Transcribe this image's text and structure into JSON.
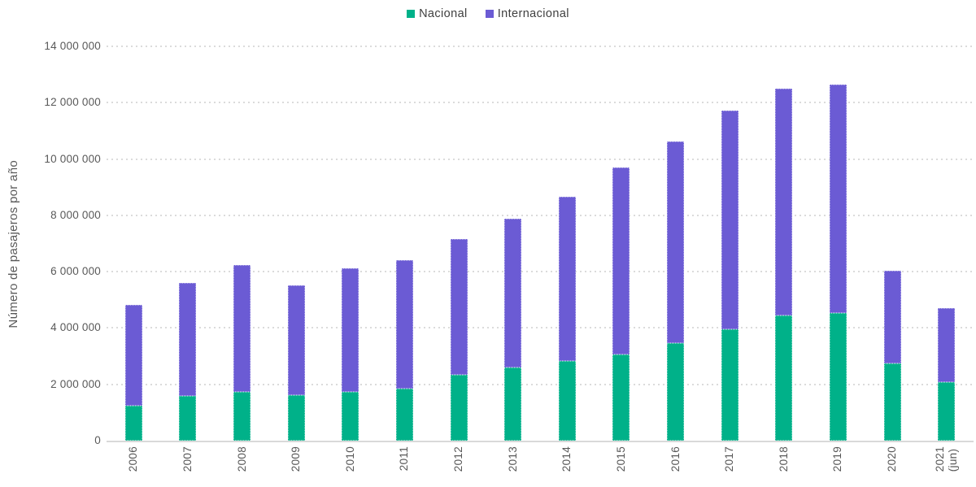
{
  "chart_data": {
    "type": "bar",
    "stacked": true,
    "title": "",
    "ylabel": "Número de pasajeros por año",
    "xlabel": "",
    "ylim": [
      0,
      14000000
    ],
    "grid": "dotted-horizontal",
    "legend_position": "top-center",
    "categories": [
      "2006",
      "2007",
      "2008",
      "2009",
      "2010",
      "2011",
      "2012",
      "2013",
      "2014",
      "2015",
      "2016",
      "2017",
      "2018",
      "2019",
      "2020",
      "2021\n(jun)"
    ],
    "series": [
      {
        "name": "Nacional",
        "color": "#00B189",
        "values": [
          1230000,
          1580000,
          1730000,
          1610000,
          1730000,
          1850000,
          2350000,
          2590000,
          2820000,
          3060000,
          3460000,
          3950000,
          4460000,
          4530000,
          2730000,
          2070000
        ]
      },
      {
        "name": "Internacional",
        "color": "#6B5BD4",
        "values": [
          3600000,
          4020000,
          4500000,
          3900000,
          4400000,
          4570000,
          4800000,
          5300000,
          5830000,
          6640000,
          7160000,
          7770000,
          8040000,
          8120000,
          3300000,
          2640000
        ]
      }
    ],
    "y_tick_values": [
      0,
      2000000,
      4000000,
      6000000,
      8000000,
      10000000,
      12000000,
      14000000
    ],
    "y_ticks": [
      "0",
      "2 000 000",
      "4 000 000",
      "6 000 000",
      "8 000 000",
      "10 000 000",
      "12 000 000",
      "14 000 000"
    ],
    "colors": {
      "axis_text": "#595959",
      "legend_text": "#3f3f3f",
      "gridline": "#dbdbdb",
      "axis_line": "#d9d9d9",
      "background": "#ffffff"
    }
  }
}
